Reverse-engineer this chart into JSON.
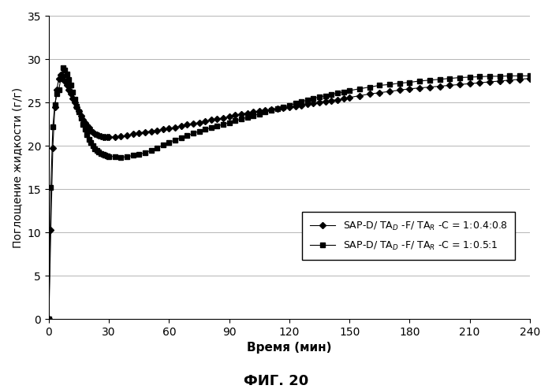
{
  "title": "ФИГ. 20",
  "xlabel": "Время (мин)",
  "ylabel": "Поглощение жидкости (г/г)",
  "xlim": [
    0,
    240
  ],
  "ylim": [
    0,
    35
  ],
  "xticks": [
    0,
    30,
    60,
    90,
    120,
    150,
    180,
    210,
    240
  ],
  "yticks": [
    0,
    5,
    10,
    15,
    20,
    25,
    30,
    35
  ],
  "series1_x": [
    0,
    1,
    2,
    3,
    4,
    5,
    6,
    7,
    8,
    9,
    10,
    11,
    12,
    13,
    14,
    15,
    16,
    17,
    18,
    19,
    20,
    21,
    22,
    23,
    24,
    25,
    26,
    27,
    28,
    29,
    30,
    33,
    36,
    39,
    42,
    45,
    48,
    51,
    54,
    57,
    60,
    63,
    66,
    69,
    72,
    75,
    78,
    81,
    84,
    87,
    90,
    93,
    96,
    99,
    102,
    105,
    108,
    111,
    114,
    117,
    120,
    123,
    126,
    129,
    132,
    135,
    138,
    141,
    144,
    147,
    150,
    155,
    160,
    165,
    170,
    175,
    180,
    185,
    190,
    195,
    200,
    205,
    210,
    215,
    220,
    225,
    230,
    235,
    240
  ],
  "series1_y": [
    0,
    10.3,
    19.8,
    24.5,
    26.5,
    27.8,
    28.2,
    28.0,
    27.5,
    27.0,
    26.5,
    26.0,
    25.5,
    25.0,
    24.5,
    24.0,
    23.5,
    23.0,
    22.7,
    22.4,
    22.1,
    21.8,
    21.6,
    21.4,
    21.3,
    21.2,
    21.1,
    21.05,
    21.0,
    21.0,
    21.0,
    21.05,
    21.1,
    21.2,
    21.35,
    21.5,
    21.6,
    21.7,
    21.8,
    21.9,
    22.0,
    22.15,
    22.3,
    22.45,
    22.55,
    22.7,
    22.85,
    23.0,
    23.1,
    23.2,
    23.4,
    23.55,
    23.7,
    23.8,
    23.9,
    24.0,
    24.1,
    24.2,
    24.3,
    24.4,
    24.5,
    24.6,
    24.7,
    24.85,
    24.95,
    25.05,
    25.15,
    25.25,
    25.35,
    25.45,
    25.6,
    25.8,
    26.0,
    26.15,
    26.3,
    26.45,
    26.6,
    26.7,
    26.8,
    26.9,
    27.0,
    27.1,
    27.2,
    27.3,
    27.4,
    27.5,
    27.6,
    27.7,
    27.8
  ],
  "series2_x": [
    0,
    1,
    2,
    3,
    4,
    5,
    6,
    7,
    8,
    9,
    10,
    11,
    12,
    13,
    14,
    15,
    16,
    17,
    18,
    19,
    20,
    21,
    22,
    23,
    24,
    25,
    26,
    27,
    28,
    29,
    30,
    33,
    36,
    39,
    42,
    45,
    48,
    51,
    54,
    57,
    60,
    63,
    66,
    69,
    72,
    75,
    78,
    81,
    84,
    87,
    90,
    93,
    96,
    99,
    102,
    105,
    108,
    111,
    114,
    117,
    120,
    123,
    126,
    129,
    132,
    135,
    138,
    141,
    144,
    147,
    150,
    155,
    160,
    165,
    170,
    175,
    180,
    185,
    190,
    195,
    200,
    205,
    210,
    215,
    220,
    225,
    230,
    235,
    240
  ],
  "series2_y": [
    0,
    15.2,
    22.2,
    24.8,
    26.0,
    26.5,
    27.8,
    29.0,
    28.8,
    28.3,
    27.7,
    27.0,
    26.2,
    25.4,
    24.6,
    23.9,
    23.2,
    22.5,
    21.9,
    21.3,
    20.8,
    20.4,
    20.0,
    19.7,
    19.5,
    19.3,
    19.1,
    19.0,
    18.9,
    18.85,
    18.8,
    18.75,
    18.7,
    18.75,
    18.9,
    19.05,
    19.2,
    19.5,
    19.8,
    20.1,
    20.4,
    20.7,
    20.95,
    21.2,
    21.45,
    21.7,
    21.9,
    22.1,
    22.3,
    22.5,
    22.7,
    22.9,
    23.1,
    23.3,
    23.5,
    23.7,
    23.9,
    24.1,
    24.3,
    24.5,
    24.7,
    24.9,
    25.1,
    25.3,
    25.5,
    25.65,
    25.8,
    25.95,
    26.1,
    26.25,
    26.4,
    26.6,
    26.8,
    27.0,
    27.1,
    27.25,
    27.35,
    27.5,
    27.6,
    27.7,
    27.8,
    27.9,
    27.95,
    28.0,
    28.05,
    28.05,
    28.1,
    28.1,
    28.1
  ],
  "legend_label1": "SAP-D/ TA$_D$ -F/ TA$_R$ -C = 1:0.4:0.8",
  "legend_label2": "SAP-D/ TA$_D$ -F/ TA$_R$ -C = 1:0.5:1",
  "bg_color": "#f0f0f0",
  "line_color": "#000000"
}
